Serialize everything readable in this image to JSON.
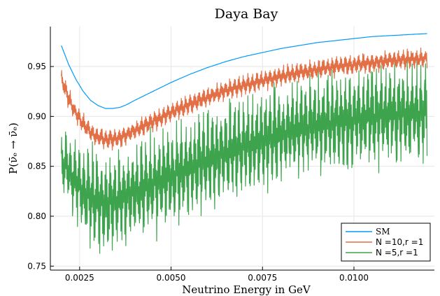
{
  "chart_data": {
    "type": "line",
    "title": "Daya Bay",
    "xlabel": "Neutrino Energy in GeV",
    "ylabel": "P(ν̄ₑ → ν̄ₑ)",
    "xlim": [
      0.0017,
      0.0122
    ],
    "ylim": [
      0.746,
      0.99
    ],
    "xticks": [
      0.0025,
      0.005,
      0.0075,
      0.01
    ],
    "xtick_labels": [
      "0.0025",
      "0.0050",
      "0.0075",
      "0.0100"
    ],
    "yticks": [
      0.75,
      0.8,
      0.85,
      0.9,
      0.95
    ],
    "ytick_labels": [
      "0.75",
      "0.80",
      "0.85",
      "0.90",
      "0.95"
    ],
    "grid": true,
    "legend_position": "bottom-right",
    "series": [
      {
        "name": "SM",
        "color": "#009AFA",
        "x": [
          0.002,
          0.0022,
          0.0024,
          0.0026,
          0.0028,
          0.003,
          0.0032,
          0.0034,
          0.0036,
          0.0038,
          0.004,
          0.0045,
          0.005,
          0.0055,
          0.006,
          0.0065,
          0.007,
          0.0075,
          0.008,
          0.0085,
          0.009,
          0.0095,
          0.01,
          0.0105,
          0.011,
          0.0115,
          0.012
        ],
        "y": [
          0.971,
          0.952,
          0.937,
          0.925,
          0.916,
          0.911,
          0.908,
          0.908,
          0.909,
          0.912,
          0.916,
          0.925,
          0.934,
          0.942,
          0.949,
          0.955,
          0.96,
          0.964,
          0.968,
          0.971,
          0.974,
          0.976,
          0.978,
          0.98,
          0.981,
          0.982,
          0.983
        ]
      },
      {
        "name": "N =10,r =1",
        "color": "#E26F46",
        "x": [
          0.002,
          0.0022,
          0.0024,
          0.0026,
          0.0028,
          0.003,
          0.0032,
          0.0034,
          0.0036,
          0.0038,
          0.004,
          0.0045,
          0.005,
          0.0055,
          0.006,
          0.0065,
          0.007,
          0.0075,
          0.008,
          0.0085,
          0.009,
          0.0095,
          0.01,
          0.0105,
          0.011,
          0.0115,
          0.012
        ],
        "y": [
          0.938,
          0.918,
          0.903,
          0.892,
          0.884,
          0.879,
          0.877,
          0.877,
          0.879,
          0.882,
          0.886,
          0.895,
          0.904,
          0.912,
          0.919,
          0.926,
          0.931,
          0.936,
          0.94,
          0.944,
          0.947,
          0.95,
          0.952,
          0.954,
          0.956,
          0.957,
          0.958
        ],
        "amplitude": [
          0.012,
          0.012,
          0.012,
          0.012,
          0.012,
          0.012,
          0.012,
          0.012,
          0.012,
          0.012,
          0.012,
          0.012,
          0.012,
          0.012,
          0.012,
          0.012,
          0.012,
          0.012,
          0.012,
          0.012,
          0.012,
          0.012,
          0.012,
          0.012,
          0.012,
          0.012,
          0.012
        ]
      },
      {
        "name": "N =5,r =1",
        "color": "#3DA44D",
        "x": [
          0.002,
          0.0022,
          0.0024,
          0.0026,
          0.0028,
          0.003,
          0.0032,
          0.0034,
          0.0036,
          0.0038,
          0.004,
          0.0045,
          0.005,
          0.0055,
          0.006,
          0.0065,
          0.007,
          0.0075,
          0.008,
          0.0085,
          0.009,
          0.0095,
          0.01,
          0.0105,
          0.011,
          0.0115,
          0.012
        ],
        "y": [
          0.855,
          0.845,
          0.835,
          0.825,
          0.818,
          0.815,
          0.814,
          0.815,
          0.818,
          0.821,
          0.824,
          0.832,
          0.84,
          0.848,
          0.856,
          0.863,
          0.87,
          0.876,
          0.882,
          0.887,
          0.891,
          0.895,
          0.898,
          0.9,
          0.902,
          0.903,
          0.904
        ],
        "amplitude": [
          0.04,
          0.045,
          0.05,
          0.055,
          0.06,
          0.06,
          0.06,
          0.06,
          0.06,
          0.06,
          0.06,
          0.06,
          0.06,
          0.06,
          0.06,
          0.06,
          0.06,
          0.06,
          0.06,
          0.06,
          0.06,
          0.06,
          0.06,
          0.06,
          0.06,
          0.06,
          0.06
        ]
      }
    ]
  }
}
